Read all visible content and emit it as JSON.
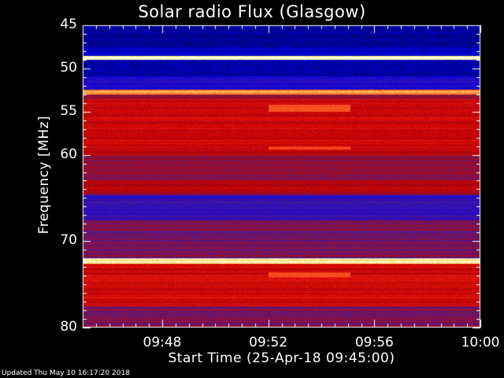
{
  "chart_data": {
    "type": "heatmap",
    "title": "Solar radio Flux (Glasgow)",
    "xlabel": "Start Time (25-Apr-18 09:45:00)",
    "ylabel": "Frequency [MHz]",
    "x_range_minutes": [
      0,
      15
    ],
    "x_ticks": [
      {
        "value": 3,
        "label": "09:48"
      },
      {
        "value": 7,
        "label": "09:52"
      },
      {
        "value": 11,
        "label": "09:56"
      },
      {
        "value": 15,
        "label": "10:00"
      }
    ],
    "y_range_mhz": [
      45,
      80
    ],
    "y_inverted": true,
    "y_ticks": [
      {
        "value": 45,
        "label": "45"
      },
      {
        "value": 50,
        "label": "50"
      },
      {
        "value": 55,
        "label": "55"
      },
      {
        "value": 60,
        "label": "60"
      },
      {
        "value": 70,
        "label": "70"
      },
      {
        "value": 80,
        "label": "80"
      }
    ],
    "bands_mhz": [
      {
        "from": 45,
        "to": 47.6,
        "level": 0.05
      },
      {
        "from": 47.6,
        "to": 48.6,
        "level": 0.1
      },
      {
        "from": 48.6,
        "to": 49.0,
        "level": 1.0
      },
      {
        "from": 49.0,
        "to": 50.9,
        "level": 0.07
      },
      {
        "from": 50.9,
        "to": 52.5,
        "level": 0.2
      },
      {
        "from": 52.5,
        "to": 53.0,
        "level": 0.85
      },
      {
        "from": 53.0,
        "to": 53.6,
        "level": 0.42
      },
      {
        "from": 53.6,
        "to": 60.0,
        "level": 0.55
      },
      {
        "from": 60.0,
        "to": 63.0,
        "level": 0.42
      },
      {
        "from": 63.0,
        "to": 64.6,
        "level": 0.5
      },
      {
        "from": 64.6,
        "to": 67.5,
        "level": 0.24
      },
      {
        "from": 67.5,
        "to": 72.0,
        "level": 0.38
      },
      {
        "from": 72.0,
        "to": 72.6,
        "level": 0.95
      },
      {
        "from": 72.6,
        "to": 77.5,
        "level": 0.56
      },
      {
        "from": 77.5,
        "to": 80.0,
        "level": 0.4
      }
    ],
    "bursts": [
      {
        "t_from": 7.0,
        "t_to": 10.1,
        "f_from": 54.2,
        "f_to": 55.0,
        "level": 0.75
      },
      {
        "t_from": 7.0,
        "t_to": 10.1,
        "f_from": 59.0,
        "f_to": 59.4,
        "level": 0.72
      },
      {
        "t_from": 7.0,
        "t_to": 10.1,
        "f_from": 73.6,
        "f_to": 74.2,
        "level": 0.74
      }
    ]
  },
  "footer": {
    "updated": "Updated Thu May 10 16:17:20 2018"
  },
  "colors": {
    "background": "#000000",
    "axis": "#ffffff",
    "low": "#0000ff",
    "mid": "#cc0000",
    "high": "#ffffcc"
  }
}
